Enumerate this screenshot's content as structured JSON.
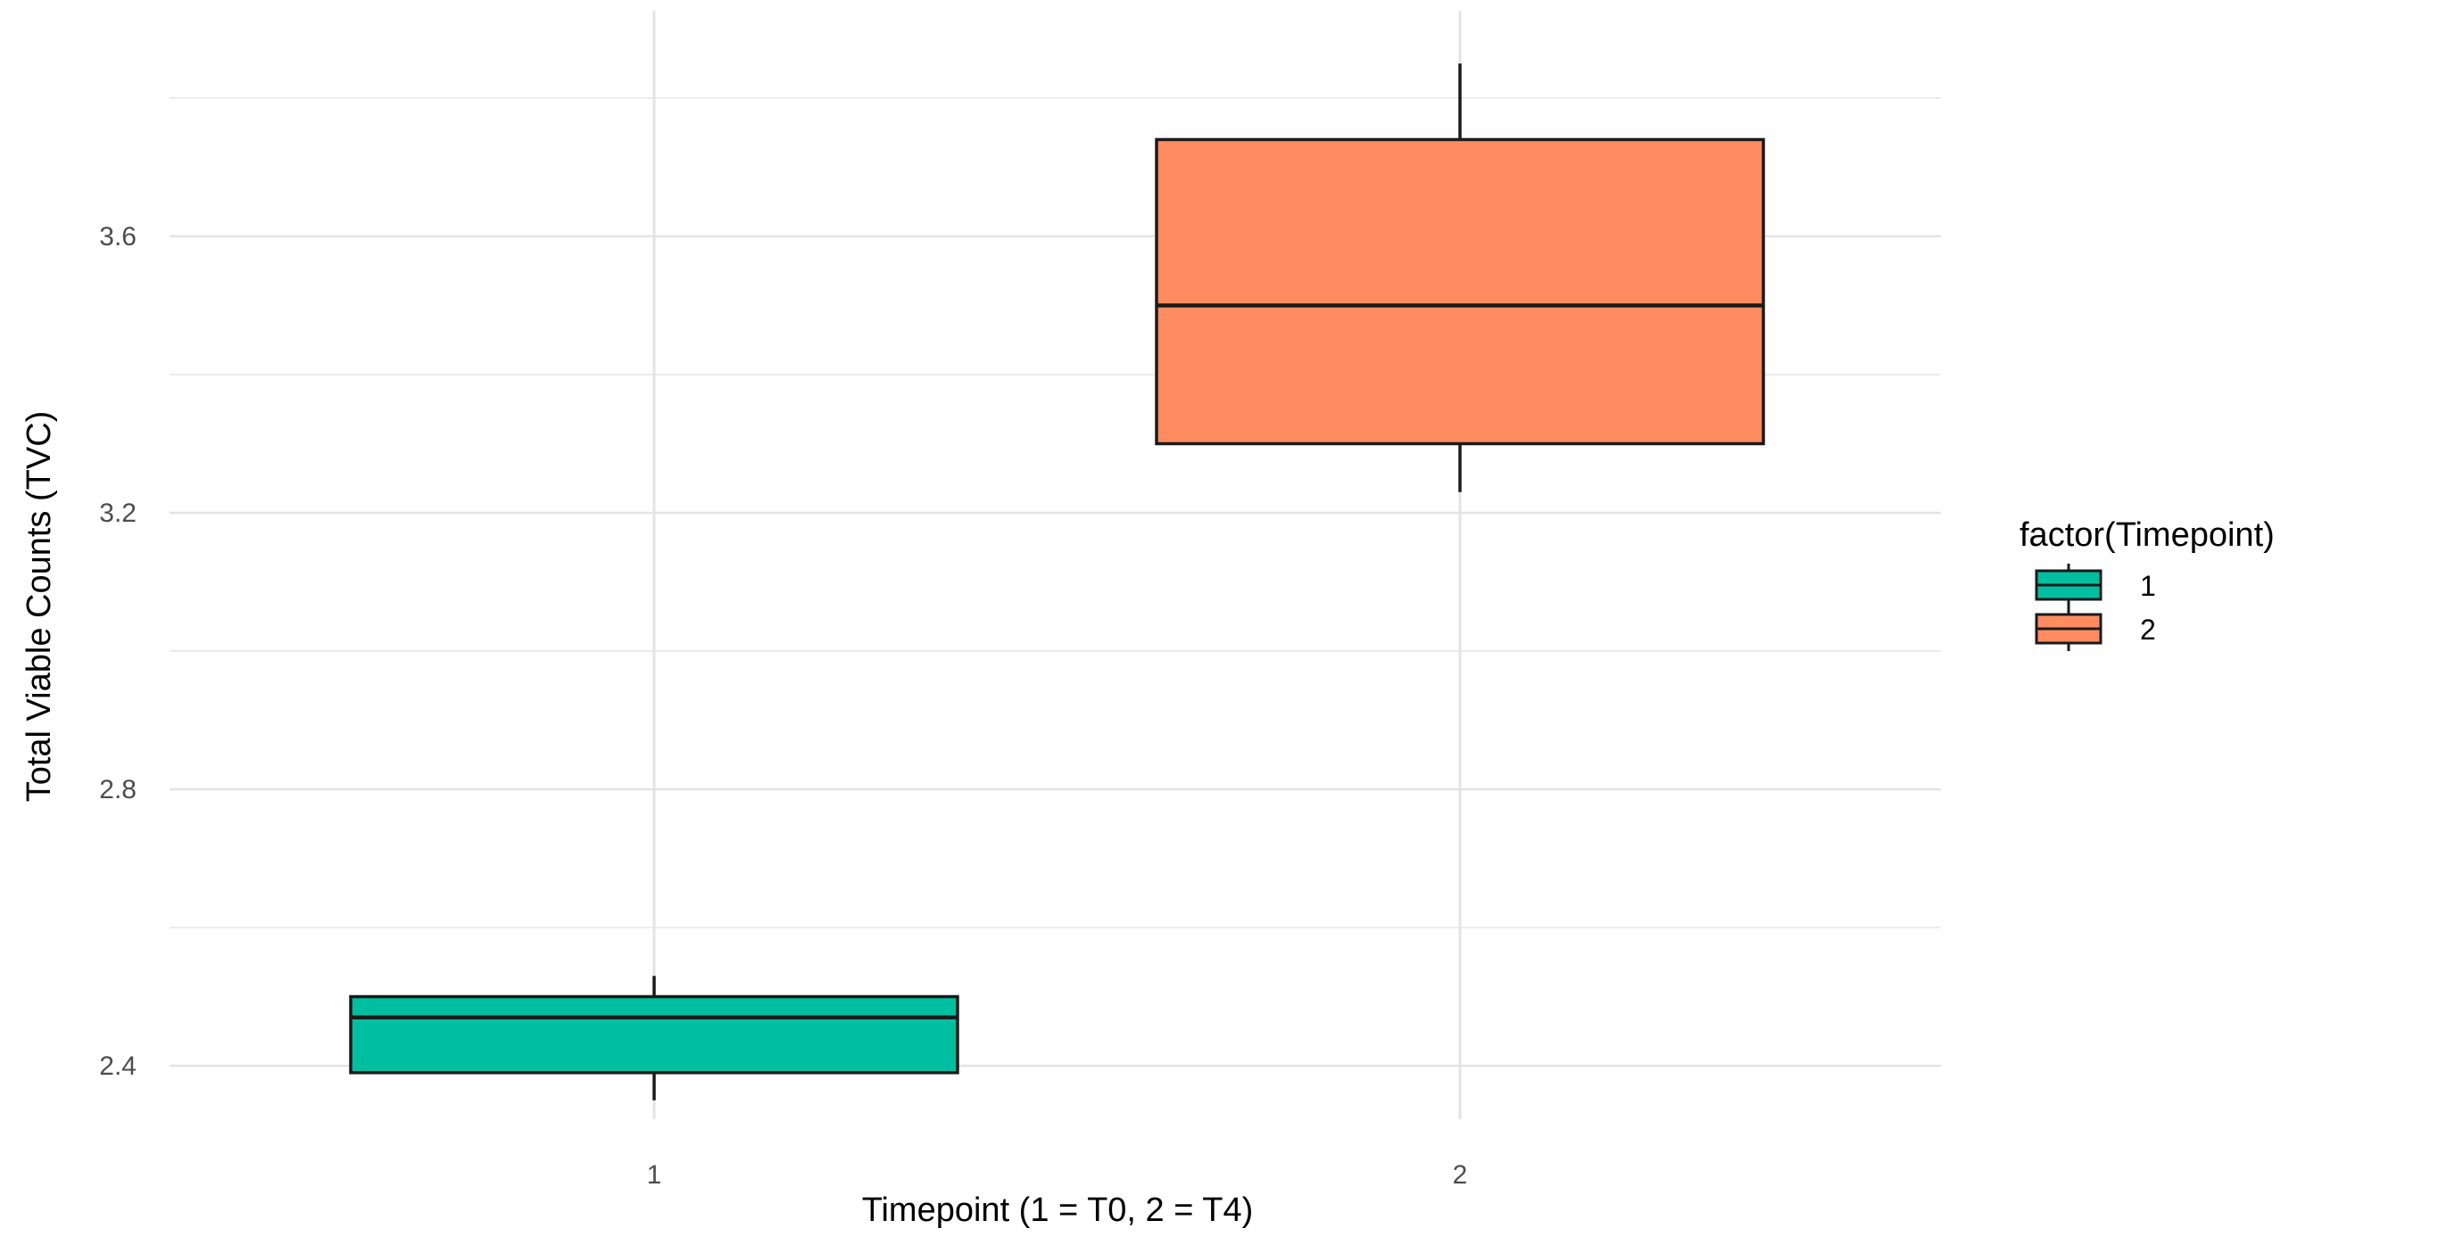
{
  "chart_data": {
    "type": "boxplot",
    "title": "",
    "xlabel": "Timepoint (1 = T0, 2 = T4)",
    "ylabel": "Total Viable Counts (TVC)",
    "categories": [
      "1",
      "2"
    ],
    "ylim": [
      2.32,
      3.87
    ],
    "y_ticks": [
      2.4,
      2.8,
      3.2,
      3.6
    ],
    "y_tick_labels": [
      "2.4",
      "2.8",
      "3.2",
      "3.6"
    ],
    "grid": true,
    "legend": {
      "title": "factor(Timepoint)",
      "position": "right",
      "entries": [
        "1",
        "2"
      ]
    },
    "series": [
      {
        "category": "1",
        "min": 2.35,
        "q1": 2.39,
        "median": 2.47,
        "q3": 2.5,
        "max": 2.53,
        "color": "#00BFA0"
      },
      {
        "category": "2",
        "min": 3.23,
        "q1": 3.3,
        "median": 3.5,
        "q3": 3.74,
        "max": 3.85,
        "color": "#FF8C61"
      }
    ]
  }
}
